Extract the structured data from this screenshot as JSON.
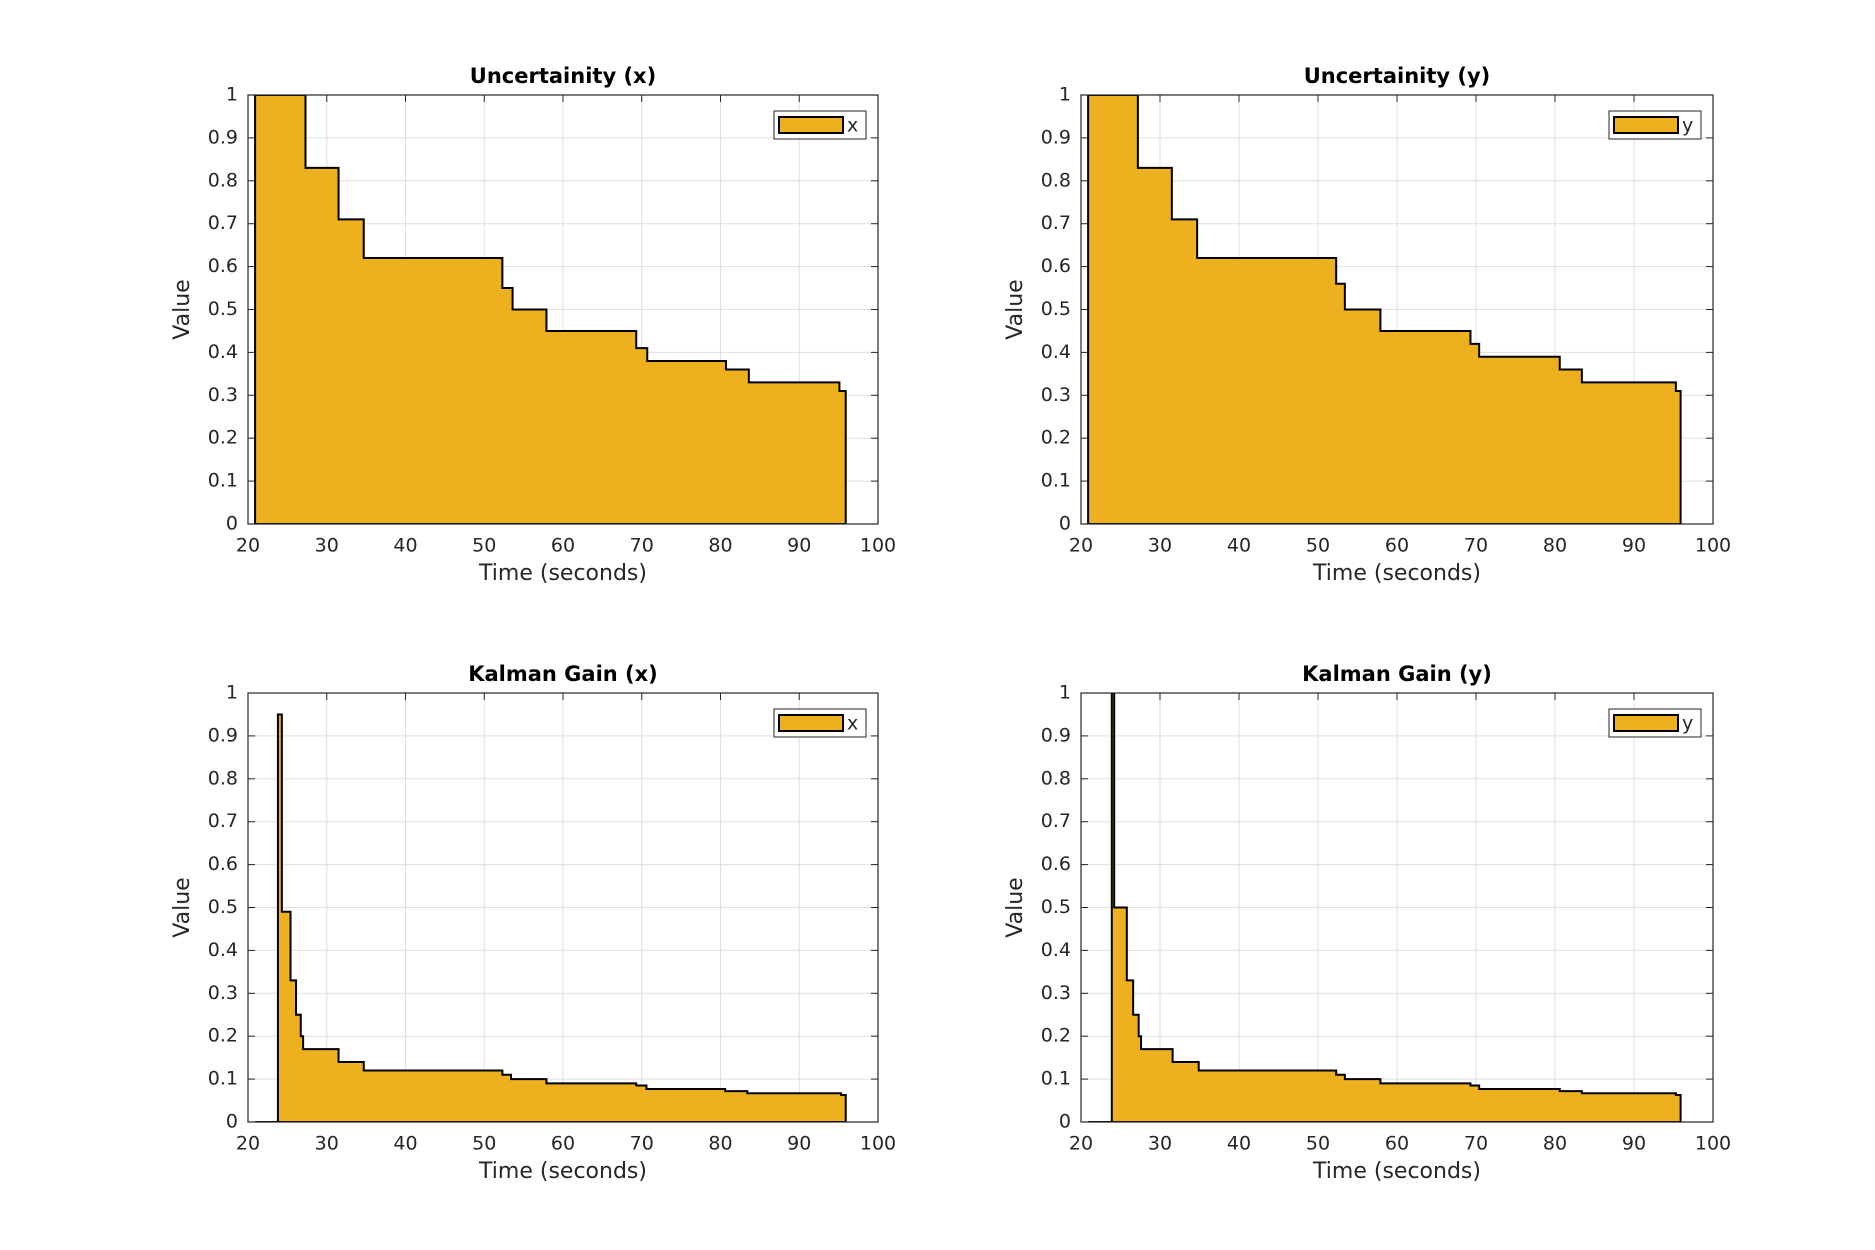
{
  "chart_data": [
    {
      "type": "area",
      "step": "post",
      "title": "Uncertainity (x)",
      "xlabel": "Time (seconds)",
      "ylabel": "Value",
      "x": [
        20.9,
        27.3,
        31.5,
        34.7,
        52.3,
        53.6,
        57.9,
        69.3,
        70.7,
        80.7,
        83.6,
        95.1,
        95.9
      ],
      "series": [
        {
          "name": "x",
          "color": "#EDB120",
          "values": [
            1,
            0.83,
            0.71,
            0.62,
            0.55,
            0.5,
            0.45,
            0.41,
            0.38,
            0.36,
            0.33,
            0.31,
            0.3
          ]
        }
      ],
      "xlim": [
        20,
        100
      ],
      "ylim": [
        0,
        1
      ],
      "xticks": [
        20,
        30,
        40,
        50,
        60,
        70,
        80,
        90,
        100
      ],
      "yticks": [
        0,
        0.1,
        0.2,
        0.3,
        0.4,
        0.5,
        0.6,
        0.7,
        0.8,
        0.9,
        1
      ],
      "grid": true,
      "legend": "upper right"
    },
    {
      "type": "area",
      "step": "post",
      "title": "Uncertainity (y)",
      "xlabel": "Time (seconds)",
      "ylabel": "Value",
      "x": [
        20.9,
        27.2,
        31.5,
        34.7,
        52.3,
        53.4,
        57.9,
        69.3,
        70.4,
        80.6,
        83.4,
        95.3,
        95.9
      ],
      "series": [
        {
          "name": "y",
          "color": "#EDB120",
          "values": [
            1,
            0.83,
            0.71,
            0.62,
            0.56,
            0.5,
            0.45,
            0.42,
            0.39,
            0.36,
            0.33,
            0.31,
            0.3
          ]
        }
      ],
      "xlim": [
        20,
        100
      ],
      "ylim": [
        0,
        1
      ],
      "xticks": [
        20,
        30,
        40,
        50,
        60,
        70,
        80,
        90,
        100
      ],
      "yticks": [
        0,
        0.1,
        0.2,
        0.3,
        0.4,
        0.5,
        0.6,
        0.7,
        0.8,
        0.9,
        1
      ],
      "grid": true,
      "legend": "upper right"
    },
    {
      "type": "area",
      "step": "post",
      "title": "Kalman Gain (x)",
      "xlabel": "Time (seconds)",
      "ylabel": "Value",
      "x": [
        20.9,
        23.8,
        24.3,
        25.4,
        26.1,
        26.7,
        27.0,
        31.5,
        34.7,
        52.3,
        53.4,
        57.9,
        69.3,
        70.6,
        80.6,
        83.4,
        95.3,
        95.9
      ],
      "series": [
        {
          "name": "x",
          "color": "#EDB120",
          "values": [
            0,
            0.95,
            0.49,
            0.33,
            0.25,
            0.2,
            0.17,
            0.14,
            0.12,
            0.11,
            0.1,
            0.09,
            0.085,
            0.077,
            0.072,
            0.067,
            0.063,
            0.06
          ]
        }
      ],
      "xlim": [
        20,
        100
      ],
      "ylim": [
        0,
        1
      ],
      "xticks": [
        20,
        30,
        40,
        50,
        60,
        70,
        80,
        90,
        100
      ],
      "yticks": [
        0,
        0.1,
        0.2,
        0.3,
        0.4,
        0.5,
        0.6,
        0.7,
        0.8,
        0.9,
        1
      ],
      "grid": true,
      "legend": "upper right"
    },
    {
      "type": "area",
      "step": "post",
      "title": "Kalman Gain (y)",
      "xlabel": "Time (seconds)",
      "ylabel": "Value",
      "x": [
        20.9,
        23.9,
        24.2,
        25.8,
        26.6,
        27.3,
        27.6,
        31.6,
        34.9,
        52.3,
        53.4,
        57.9,
        69.3,
        70.4,
        80.6,
        83.4,
        95.3,
        95.9
      ],
      "series": [
        {
          "name": "y",
          "color": "#EDB120",
          "values": [
            0,
            1,
            0.5,
            0.33,
            0.25,
            0.2,
            0.17,
            0.14,
            0.12,
            0.11,
            0.1,
            0.09,
            0.085,
            0.077,
            0.072,
            0.067,
            0.063,
            0.062
          ]
        }
      ],
      "xlim": [
        20,
        100
      ],
      "ylim": [
        0,
        1
      ],
      "xticks": [
        20,
        30,
        40,
        50,
        60,
        70,
        80,
        90,
        100
      ],
      "yticks": [
        0,
        0.1,
        0.2,
        0.3,
        0.4,
        0.5,
        0.6,
        0.7,
        0.8,
        0.9,
        1
      ],
      "grid": true,
      "legend": "upper right"
    }
  ]
}
